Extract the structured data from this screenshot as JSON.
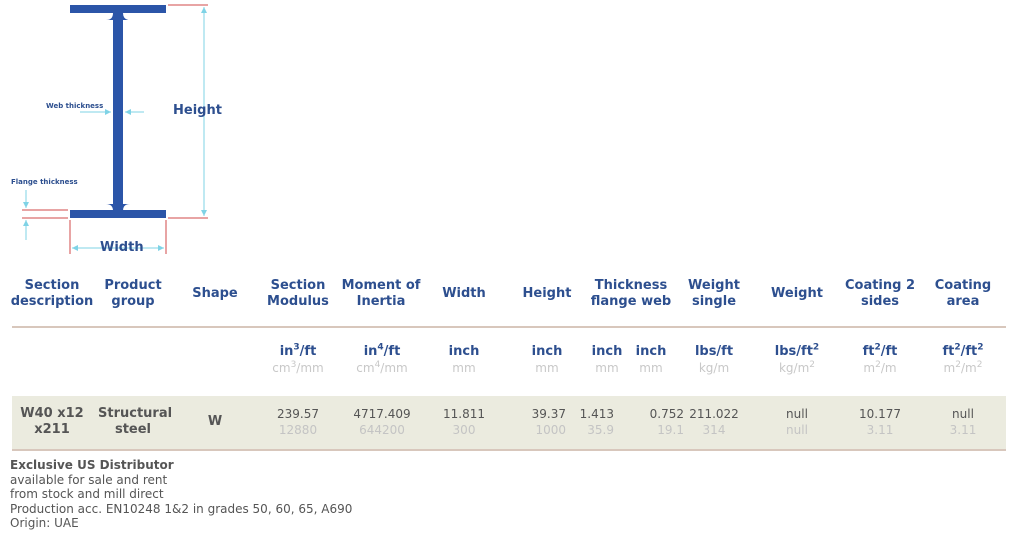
{
  "diagram": {
    "height_label": "Height",
    "width_label": "Width",
    "web_label": "Web thickness",
    "flange_label": "Flange thickness"
  },
  "headers": {
    "section_description": "Section description",
    "product_group": "Product group",
    "shape": "Shape",
    "section_modulus": "Section Modulus",
    "moment_of_inertia": "Moment of Inertia",
    "width": "Width",
    "height": "Height",
    "thickness": "Thickness flange web",
    "weight_single": "Weight single",
    "weight": "Weight",
    "coating_2_sides": "Coating 2 sides",
    "coating_area": "Coating area"
  },
  "units": {
    "section_modulus": {
      "imperial_base": "in",
      "imperial_exp": "3",
      "imperial_suffix": "/ft",
      "metric_base": "cm",
      "metric_exp": "3",
      "metric_suffix": "/mm"
    },
    "moment_of_inertia": {
      "imperial_base": "in",
      "imperial_exp": "4",
      "imperial_suffix": "/ft",
      "metric_base": "cm",
      "metric_exp": "4",
      "metric_suffix": "/mm"
    },
    "width": {
      "imperial": "inch",
      "metric": "mm"
    },
    "height": {
      "imperial": "inch",
      "metric": "mm"
    },
    "flange": {
      "imperial": "inch",
      "metric": "mm"
    },
    "web": {
      "imperial": "inch",
      "metric": "mm"
    },
    "weight_single": {
      "imperial": "lbs/ft",
      "metric": "kg/m"
    },
    "weight": {
      "imperial_base": "lbs/ft",
      "imperial_exp": "2",
      "metric_base": "kg/m",
      "metric_exp": "2"
    },
    "coating_2_sides": {
      "imperial_base": "ft",
      "imperial_exp": "2",
      "imperial_suffix": "/ft",
      "metric_base": "m",
      "metric_exp": "2",
      "metric_suffix": "/m"
    },
    "coating_area": {
      "imperial_base": "ft",
      "imperial_exp": "2",
      "imperial_mid": "/ft",
      "imperial_exp2": "2",
      "metric_base": "m",
      "metric_exp": "2",
      "metric_mid": "/m",
      "metric_exp2": "2"
    }
  },
  "row": {
    "section_description": "W40 x12 x211",
    "product_group": "Structural steel",
    "shape": "W",
    "section_modulus": {
      "imperial": "239.57",
      "metric": "12880"
    },
    "moment_of_inertia": {
      "imperial": "4717.409",
      "metric": "644200"
    },
    "width": {
      "imperial": "11.811",
      "metric": "300"
    },
    "height": {
      "imperial": "39.37",
      "metric": "1000"
    },
    "flange": {
      "imperial": "1.413",
      "metric": "35.9"
    },
    "web": {
      "imperial": "0.752",
      "metric": "19.1"
    },
    "weight_single": {
      "imperial": "211.022",
      "metric": "314"
    },
    "weight": {
      "imperial": "null",
      "metric": "null"
    },
    "coating_2_sides": {
      "imperial": "10.177",
      "metric": "3.11"
    },
    "coating_area": {
      "imperial": "null",
      "metric": "3.11"
    }
  },
  "notes": {
    "title": "Exclusive US Distributor",
    "lines": [
      "available for sale and rent",
      "from stock and mill direct",
      "Production acc. EN10248 1&2 in grades 50, 60, 65, A690",
      "Origin: UAE"
    ]
  },
  "colors": {
    "accent": "#2d4f8f",
    "beam": "#2b55a8",
    "dimension": "#7fd3e6",
    "rule": "#d8c7bc",
    "row_bg": "#ebebdf"
  }
}
